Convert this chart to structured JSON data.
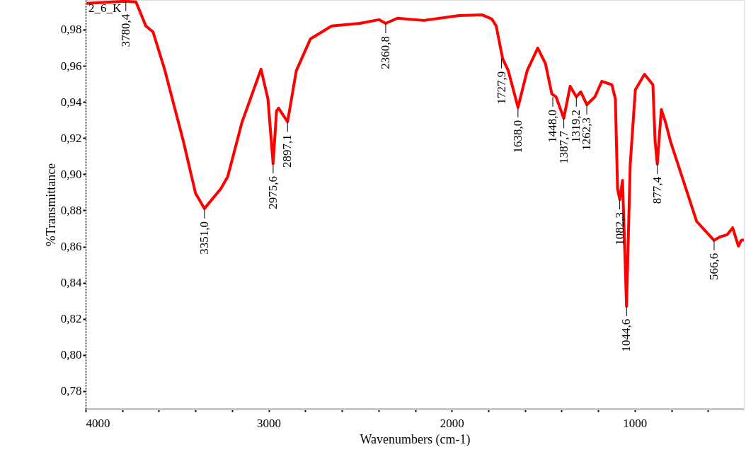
{
  "chart_data": {
    "type": "line",
    "xlabel": "Wavenumbers (cm-1)",
    "ylabel": "%Transmittance",
    "x": [
      3995,
      3786,
      3725,
      3671,
      3632,
      3570,
      3466,
      3400,
      3351,
      3262,
      3224,
      3146,
      3042,
      3004,
      2976,
      2957,
      2946,
      2897,
      2849,
      2772,
      2656,
      2502,
      2398,
      2361,
      2297,
      2153,
      1960,
      1835,
      1781,
      1757,
      1722,
      1691,
      1638,
      1588,
      1530,
      1488,
      1453,
      1430,
      1388,
      1353,
      1319,
      1295,
      1262,
      1218,
      1180,
      1125,
      1106,
      1094,
      1082,
      1067,
      1045,
      1025,
      997,
      947,
      901,
      889,
      877,
      855,
      832,
      805,
      662,
      567,
      535,
      496,
      465,
      434,
      419,
      404
    ],
    "series": [
      {
        "color": "#ff0000",
        "values": [
          0.9945,
          0.9957,
          0.9953,
          0.982,
          0.9788,
          0.9585,
          0.9182,
          0.8896,
          0.881,
          0.8919,
          0.8986,
          0.9287,
          0.9581,
          0.9416,
          0.906,
          0.935,
          0.9366,
          0.929,
          0.9573,
          0.9749,
          0.982,
          0.9835,
          0.9855,
          0.9835,
          0.9863,
          0.9851,
          0.9878,
          0.9882,
          0.9859,
          0.982,
          0.964,
          0.9573,
          0.937,
          0.9573,
          0.9698,
          0.9612,
          0.9444,
          0.9428,
          0.931,
          0.9487,
          0.9428,
          0.9456,
          0.9385,
          0.9428,
          0.9514,
          0.9495,
          0.9416,
          0.8919,
          0.886,
          0.8966,
          0.827,
          0.9052,
          0.9467,
          0.9553,
          0.9495,
          0.9182,
          0.9056,
          0.9358,
          0.9287,
          0.9182,
          0.8739,
          0.8634,
          0.8653,
          0.8665,
          0.8704,
          0.8602,
          0.8634,
          0.8638
        ]
      }
    ],
    "xlim": [
      4000,
      404
    ],
    "xticks": [
      4000,
      {
        "value": 3800,
        "label": null
      },
      {
        "value": 3600,
        "label": null
      },
      {
        "value": 3400,
        "label": null
      },
      {
        "value": 3200,
        "label": null
      },
      3000,
      {
        "value": 2800,
        "label": null
      },
      {
        "value": 2600,
        "label": null
      },
      {
        "value": 2400,
        "label": null
      },
      {
        "value": 2200,
        "label": null
      },
      2000,
      {
        "value": 1800,
        "label": null
      },
      {
        "value": 1600,
        "label": null
      },
      {
        "value": 1400,
        "label": null
      },
      {
        "value": 1200,
        "label": null
      },
      1000,
      {
        "value": 800,
        "label": null
      },
      {
        "value": 600,
        "label": null
      }
    ],
    "ylim": [
      0.7702,
      0.9964
    ],
    "yticks": [
      {
        "value": 0.78,
        "label": "0,78"
      },
      {
        "value": 0.8,
        "label": "0,80"
      },
      {
        "value": 0.82,
        "label": "0,82"
      },
      {
        "value": 0.84,
        "label": "0,84"
      },
      {
        "value": 0.86,
        "label": "0,86"
      },
      {
        "value": 0.88,
        "label": "0,88"
      },
      {
        "value": 0.9,
        "label": "0,90"
      },
      {
        "value": 0.92,
        "label": "0,92"
      },
      {
        "value": 0.94,
        "label": "0,94"
      },
      {
        "value": 0.96,
        "label": "0,96"
      },
      {
        "value": 0.98,
        "label": "0,98"
      }
    ],
    "grid": false,
    "line_style": "solid",
    "marker": "none",
    "annotations": [
      "2_6_K",
      {
        "text": "3780,4",
        "x": 3780.4,
        "y": 0.9957
      },
      {
        "text": "3351,0",
        "x": 3351.0,
        "y": 0.881
      },
      {
        "text": "2975,6",
        "x": 2975.6,
        "y": 0.906
      },
      {
        "text": "2897,1",
        "x": 2897.1,
        "y": 0.929
      },
      {
        "text": "2360,8",
        "x": 2360.8,
        "y": 0.9835
      },
      {
        "text": "1727,9",
        "x": 1727.9,
        "y": 0.964
      },
      {
        "text": "1638,0",
        "x": 1638.0,
        "y": 0.937
      },
      {
        "text": "1448,0",
        "x": 1448.0,
        "y": 0.9428
      },
      {
        "text": "1387,7",
        "x": 1387.7,
        "y": 0.931
      },
      {
        "text": "1319,2",
        "x": 1319.2,
        "y": 0.9428
      },
      {
        "text": "1262,3",
        "x": 1262.3,
        "y": 0.9385
      },
      {
        "text": "1082,3",
        "x": 1082.3,
        "y": 0.886
      },
      {
        "text": "1044,6",
        "x": 1044.6,
        "y": 0.827
      },
      {
        "text": "877,4",
        "x": 877.4,
        "y": 0.9056
      },
      {
        "text": "566,6",
        "x": 566.6,
        "y": 0.8634
      }
    ]
  }
}
